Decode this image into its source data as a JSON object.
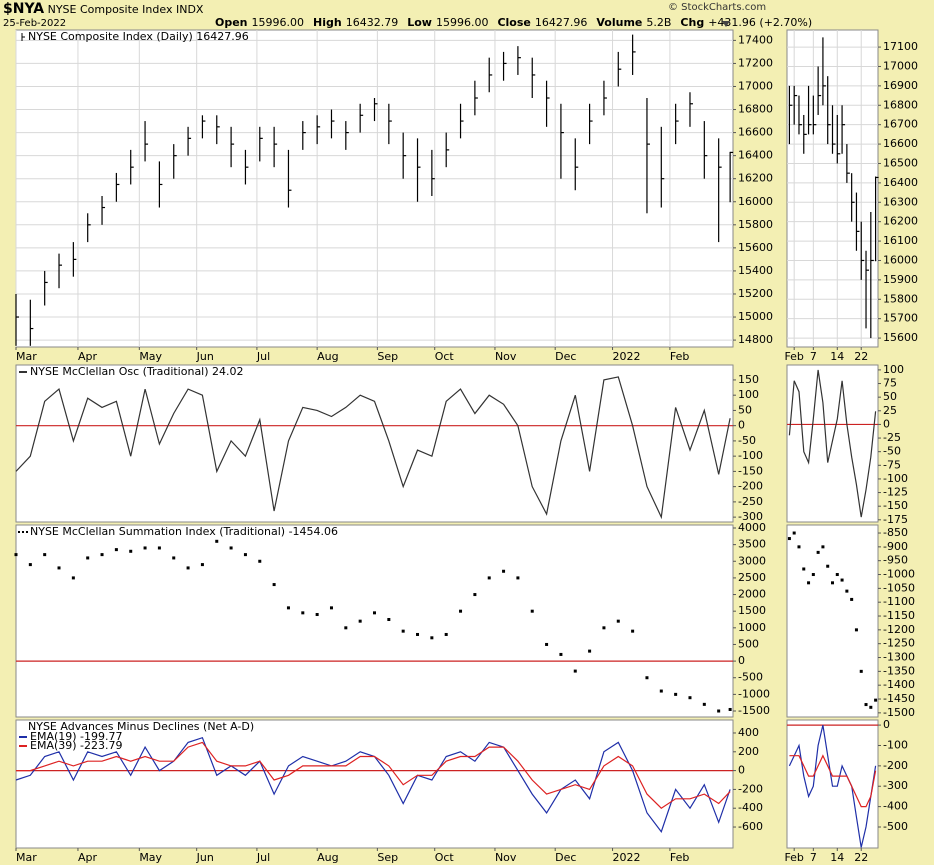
{
  "header": {
    "symbol": "$NYA",
    "name": "NYSE Composite Index",
    "exchange": "INDX",
    "date": "25-Feb-2022",
    "quote": [
      {
        "label": "Open",
        "value": "15996.00"
      },
      {
        "label": "High",
        "value": "16432.79"
      },
      {
        "label": "Low",
        "value": "15996.00"
      },
      {
        "label": "Close",
        "value": "16427.96"
      },
      {
        "label": "Volume",
        "value": "5.2B"
      },
      {
        "label": "Chg",
        "value": "+431.96 (+2.70%)"
      }
    ],
    "credit": "© StockCharts.com"
  },
  "chart_data": [
    {
      "type": "hlc",
      "title": "NYSE Composite Index (Daily) 16427.96",
      "color": "#000000",
      "grid": true,
      "x": [
        0,
        5,
        10,
        15,
        20,
        25,
        30,
        35,
        40,
        45,
        50,
        55,
        60,
        65,
        70,
        75,
        80,
        85,
        90,
        95,
        100,
        105,
        110,
        115,
        120,
        125,
        130,
        135,
        140,
        145,
        150,
        155,
        160,
        165,
        170,
        175,
        180,
        185,
        190,
        195,
        200,
        205,
        210,
        215,
        220,
        225,
        230,
        235,
        240,
        245,
        249
      ],
      "high": [
        15200,
        15150,
        15400,
        15550,
        15650,
        15900,
        16050,
        16250,
        16450,
        16700,
        16350,
        16500,
        16650,
        16750,
        16750,
        16650,
        16450,
        16650,
        16650,
        16450,
        16700,
        16750,
        16800,
        16700,
        16850,
        16900,
        16850,
        16600,
        16550,
        16450,
        16600,
        16850,
        17050,
        17250,
        17300,
        17350,
        17250,
        17050,
        16850,
        16550,
        16850,
        17050,
        17300,
        17450,
        16900,
        16650,
        16850,
        16950,
        16700,
        16550,
        16432.79
      ],
      "low": [
        14750,
        14750,
        15100,
        15250,
        15350,
        15650,
        15800,
        16000,
        16150,
        16350,
        15950,
        16200,
        16400,
        16550,
        16500,
        16300,
        16150,
        16350,
        16300,
        15950,
        16450,
        16500,
        16550,
        16450,
        16600,
        16700,
        16500,
        16200,
        16000,
        16050,
        16300,
        16550,
        16750,
        16950,
        17050,
        17100,
        16900,
        16650,
        16200,
        16100,
        16500,
        16750,
        17000,
        17100,
        15900,
        15950,
        16500,
        16650,
        16200,
        15650,
        15996
      ],
      "close": [
        15000,
        14900,
        15300,
        15450,
        15500,
        15800,
        15950,
        16150,
        16300,
        16500,
        16150,
        16400,
        16550,
        16700,
        16650,
        16500,
        16300,
        16550,
        16500,
        16100,
        16600,
        16650,
        16700,
        16600,
        16750,
        16850,
        16700,
        16400,
        16300,
        16200,
        16450,
        16700,
        16900,
        17100,
        17200,
        17250,
        17100,
        16900,
        16600,
        16300,
        16700,
        16900,
        17150,
        17300,
        16500,
        16200,
        16700,
        16850,
        16400,
        16300,
        16427.96
      ],
      "xlim": [
        0,
        250
      ],
      "xticks": [
        {
          "value": 0,
          "label": "Mar"
        },
        {
          "value": 21.6,
          "label": "Apr"
        },
        {
          "value": 43,
          "label": "May"
        },
        {
          "value": 63,
          "label": "Jun"
        },
        {
          "value": 84,
          "label": "Jul"
        },
        {
          "value": 105,
          "label": "Aug"
        },
        {
          "value": 126,
          "label": "Sep"
        },
        {
          "value": 146,
          "label": "Oct"
        },
        {
          "value": 167,
          "label": "Nov"
        },
        {
          "value": 188,
          "label": "Dec"
        },
        {
          "value": 208,
          "label": "2022"
        },
        {
          "value": 228,
          "label": "Feb"
        }
      ],
      "ylim": [
        14740,
        17490
      ],
      "yticks": [
        14800,
        15000,
        15200,
        15400,
        15600,
        15800,
        16000,
        16200,
        16400,
        16600,
        16800,
        17000,
        17200,
        17400
      ]
    },
    {
      "type": "line",
      "hline": 0,
      "hline_color": "#cc2222",
      "x": [
        0,
        5,
        10,
        15,
        20,
        25,
        30,
        35,
        40,
        45,
        50,
        55,
        60,
        65,
        70,
        75,
        80,
        85,
        90,
        95,
        100,
        105,
        110,
        115,
        120,
        125,
        130,
        135,
        140,
        145,
        150,
        155,
        160,
        165,
        170,
        175,
        180,
        185,
        190,
        195,
        200,
        205,
        210,
        215,
        220,
        225,
        230,
        235,
        240,
        245,
        249
      ],
      "series": [
        {
          "name": "NYSE McClellan Osc (Traditional) 24.02",
          "color": "#333333",
          "values": [
            -150,
            -100,
            80,
            120,
            -50,
            90,
            60,
            80,
            -100,
            120,
            -60,
            40,
            120,
            100,
            -150,
            -50,
            -100,
            20,
            -280,
            -50,
            60,
            50,
            30,
            60,
            100,
            80,
            -50,
            -200,
            -80,
            -100,
            80,
            120,
            40,
            100,
            70,
            0,
            -200,
            -290,
            -50,
            100,
            -150,
            150,
            160,
            0,
            -200,
            -300,
            60,
            -80,
            50,
            -160,
            24.02
          ]
        }
      ],
      "xlim": [
        0,
        250
      ],
      "ylim": [
        -316,
        199
      ],
      "yticks": [
        150,
        100,
        50,
        0,
        -50,
        -100,
        -150,
        -200,
        -250,
        -300
      ]
    },
    {
      "type": "scatter",
      "hline": 0,
      "hline_color": "#cc2222",
      "x": [
        0,
        5,
        10,
        15,
        20,
        25,
        30,
        35,
        40,
        45,
        50,
        55,
        60,
        65,
        70,
        75,
        80,
        85,
        90,
        95,
        100,
        105,
        110,
        115,
        120,
        125,
        130,
        135,
        140,
        145,
        150,
        155,
        160,
        165,
        170,
        175,
        180,
        185,
        190,
        195,
        200,
        205,
        210,
        215,
        220,
        225,
        230,
        235,
        240,
        245,
        249
      ],
      "series": [
        {
          "name": "NYSE McClellan Summation Index (Traditional) -1454.06",
          "color": "#000000",
          "values": [
            3200,
            2900,
            3200,
            2800,
            2500,
            3100,
            3200,
            3350,
            3300,
            3400,
            3400,
            3100,
            2800,
            2900,
            3600,
            3400,
            3200,
            3000,
            2300,
            1600,
            1450,
            1400,
            1600,
            1000,
            1200,
            1450,
            1250,
            900,
            800,
            700,
            800,
            1500,
            2000,
            2500,
            2700,
            2500,
            1500,
            500,
            200,
            -300,
            300,
            1000,
            1200,
            900,
            -500,
            -900,
            -1000,
            -1100,
            -1300,
            -1500,
            -1454.06
          ]
        }
      ],
      "xlim": [
        0,
        250
      ],
      "ylim": [
        -1680,
        4090
      ],
      "yticks": [
        4000,
        3500,
        3000,
        2500,
        2000,
        1500,
        1000,
        500,
        0,
        -500,
        -1000,
        -1500
      ]
    },
    {
      "type": "line",
      "title": "NYSE Advances Minus Declines (Net A-D)",
      "hline": 0,
      "hline_color": "#cc2222",
      "x": [
        0,
        5,
        10,
        15,
        20,
        25,
        30,
        35,
        40,
        45,
        50,
        55,
        60,
        65,
        70,
        75,
        80,
        85,
        90,
        95,
        100,
        105,
        110,
        115,
        120,
        125,
        130,
        135,
        140,
        145,
        150,
        155,
        160,
        165,
        170,
        175,
        180,
        185,
        190,
        195,
        200,
        205,
        210,
        215,
        220,
        225,
        230,
        235,
        240,
        245,
        249
      ],
      "series": [
        {
          "name": "EMA(19) -199.77",
          "color": "#1f2fa8",
          "values": [
            -100,
            -50,
            150,
            200,
            -100,
            200,
            150,
            200,
            -50,
            250,
            0,
            100,
            300,
            350,
            -50,
            50,
            -50,
            100,
            -250,
            50,
            150,
            100,
            50,
            100,
            200,
            150,
            -50,
            -350,
            -50,
            -100,
            150,
            200,
            100,
            300,
            250,
            0,
            -250,
            -450,
            -200,
            -100,
            -300,
            200,
            300,
            0,
            -450,
            -650,
            -200,
            -400,
            -150,
            -550,
            -199.77
          ]
        },
        {
          "name": "EMA(39) -223.79",
          "color": "#dd2222",
          "values": [
            0,
            0,
            50,
            100,
            50,
            100,
            100,
            150,
            100,
            150,
            100,
            100,
            250,
            300,
            100,
            50,
            50,
            100,
            -100,
            -50,
            50,
            50,
            50,
            50,
            150,
            150,
            50,
            -150,
            -50,
            -50,
            100,
            150,
            150,
            250,
            250,
            100,
            -100,
            -250,
            -200,
            -150,
            -200,
            50,
            150,
            50,
            -250,
            -400,
            -300,
            -300,
            -250,
            -350,
            -223.79
          ]
        }
      ],
      "xlim": [
        0,
        250
      ],
      "xticks": [
        {
          "value": 0,
          "label": "Mar"
        },
        {
          "value": 21.6,
          "label": "Apr"
        },
        {
          "value": 43,
          "label": "May"
        },
        {
          "value": 63,
          "label": "Jun"
        },
        {
          "value": 84,
          "label": "Jul"
        },
        {
          "value": 105,
          "label": "Aug"
        },
        {
          "value": 126,
          "label": "Sep"
        },
        {
          "value": 146,
          "label": "Oct"
        },
        {
          "value": 167,
          "label": "Nov"
        },
        {
          "value": 188,
          "label": "Dec"
        },
        {
          "value": 208,
          "label": "2022"
        },
        {
          "value": 228,
          "label": "Feb"
        }
      ],
      "ylim": [
        -823,
        538
      ],
      "yticks": [
        400,
        200,
        0,
        -200,
        -400,
        -600
      ]
    },
    {
      "type": "hlc",
      "color": "#000000",
      "grid": true,
      "x": [
        0,
        1,
        2,
        3,
        4,
        5,
        6,
        7,
        8,
        9,
        10,
        11,
        12,
        13,
        14,
        15,
        16,
        17,
        18
      ],
      "high": [
        16900,
        16900,
        16850,
        16750,
        16900,
        16850,
        17000,
        17150,
        16950,
        16800,
        16750,
        16800,
        16600,
        16450,
        16350,
        16200,
        16050,
        16250,
        16432.79
      ],
      "low": [
        16600,
        16700,
        16650,
        16550,
        16650,
        16650,
        16750,
        16800,
        16600,
        16550,
        16500,
        16550,
        16400,
        16200,
        16050,
        15900,
        15650,
        15600,
        15996
      ],
      "close": [
        16800,
        16850,
        16700,
        16650,
        16700,
        16700,
        16850,
        16900,
        16700,
        16600,
        16550,
        16700,
        16450,
        16300,
        16150,
        16000,
        15950,
        16000,
        16427.96
      ],
      "xlim": [
        -0.5,
        18.5
      ],
      "xticks": [
        {
          "value": 1,
          "label": "Feb"
        },
        {
          "value": 5,
          "label": "7"
        },
        {
          "value": 10,
          "label": "14"
        },
        {
          "value": 15,
          "label": "22"
        }
      ],
      "ylim": [
        15554,
        17188
      ],
      "yticks": [
        15600,
        15700,
        15800,
        15900,
        16000,
        16100,
        16200,
        16300,
        16400,
        16500,
        16600,
        16700,
        16800,
        16900,
        17000,
        17100
      ]
    },
    {
      "type": "line",
      "hline": 0,
      "hline_color": "#cc2222",
      "x": [
        0,
        1,
        2,
        3,
        4,
        5,
        6,
        7,
        8,
        9,
        10,
        11,
        12,
        13,
        14,
        15,
        16,
        17,
        18
      ],
      "series": [
        {
          "color": "#333333",
          "values": [
            -20,
            80,
            60,
            -50,
            -70,
            10,
            100,
            40,
            -70,
            -30,
            10,
            80,
            0,
            -60,
            -110,
            -170,
            -120,
            -60,
            24.02
          ]
        }
      ],
      "xlim": [
        -0.5,
        18.5
      ],
      "ylim": [
        -179,
        109
      ],
      "yticks": [
        100,
        75,
        50,
        25,
        0,
        -25,
        -50,
        -75,
        -100,
        -125,
        -150,
        -175
      ]
    },
    {
      "type": "scatter",
      "x": [
        0,
        1,
        2,
        3,
        4,
        5,
        6,
        7,
        8,
        9,
        10,
        11,
        12,
        13,
        14,
        15,
        16,
        17,
        18
      ],
      "series": [
        {
          "color": "#000000",
          "values": [
            -870,
            -850,
            -900,
            -980,
            -1030,
            -1000,
            -920,
            -900,
            -970,
            -1030,
            -1000,
            -1020,
            -1060,
            -1090,
            -1200,
            -1350,
            -1470,
            -1480,
            -1454.06
          ]
        }
      ],
      "xlim": [
        -0.5,
        18.5
      ],
      "ylim": [
        -1515,
        -821
      ],
      "yticks": [
        -850,
        -900,
        -950,
        -1000,
        -1050,
        -1100,
        -1150,
        -1200,
        -1250,
        -1300,
        -1350,
        -1400,
        -1450,
        -1500
      ]
    },
    {
      "type": "line",
      "hline": 0,
      "hline_color": "#cc2222",
      "x": [
        0,
        1,
        2,
        3,
        4,
        5,
        6,
        7,
        8,
        9,
        10,
        11,
        12,
        13,
        14,
        15,
        16,
        17,
        18
      ],
      "series": [
        {
          "color": "#1f2fa8",
          "values": [
            -200,
            -150,
            -100,
            -250,
            -350,
            -300,
            -100,
            0,
            -150,
            -300,
            -300,
            -200,
            -250,
            -300,
            -450,
            -600,
            -500,
            -350,
            -199.77
          ]
        },
        {
          "color": "#dd2222",
          "values": [
            -150,
            -150,
            -150,
            -200,
            -250,
            -250,
            -200,
            -150,
            -200,
            -250,
            -250,
            -250,
            -250,
            -300,
            -350,
            -400,
            -400,
            -350,
            -223.79
          ]
        }
      ],
      "xlim": [
        -0.5,
        18.5
      ],
      "xticks": [
        {
          "value": 1,
          "label": "Feb"
        },
        {
          "value": 5,
          "label": "7"
        },
        {
          "value": 10,
          "label": "14"
        },
        {
          "value": 15,
          "label": "22"
        }
      ],
      "ylim": [
        -603,
        25
      ],
      "yticks": [
        0,
        -100,
        -200,
        -300,
        -400,
        -500
      ]
    }
  ]
}
